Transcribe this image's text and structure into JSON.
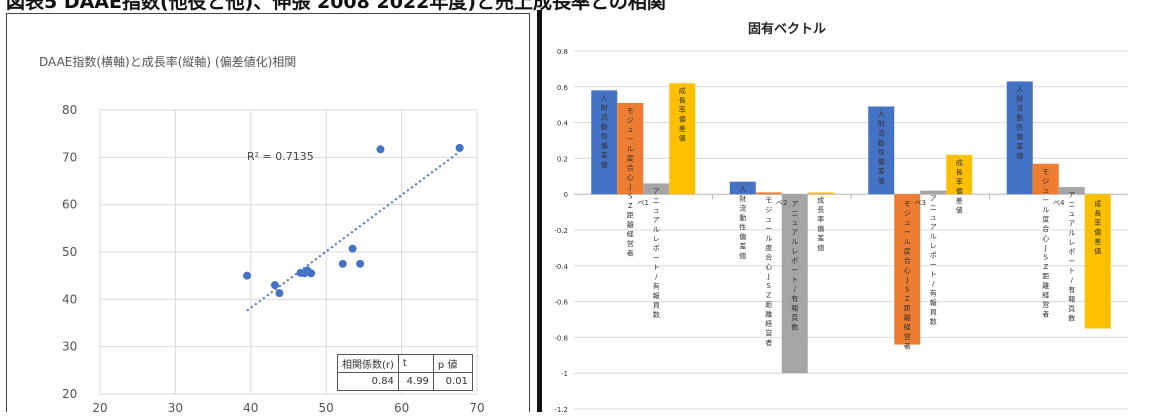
{
  "page": {
    "banner_text": "図表5 DAAE指数(他役と他)、伸張 2008 2022年度)と売上成長率との相関"
  },
  "chart_data": [
    {
      "type": "scatter",
      "title": "DAAE指数(横軸)と成長率(縦軸) (偏差値化)相関",
      "xlim": [
        20,
        70
      ],
      "ylim": [
        20,
        80
      ],
      "xticks": [
        20,
        30,
        40,
        50,
        60,
        70
      ],
      "yticks": [
        20,
        30,
        40,
        50,
        60,
        70,
        80
      ],
      "grid": true,
      "points": [
        {
          "x": 39.5,
          "y": 45.0
        },
        {
          "x": 43.2,
          "y": 43.0
        },
        {
          "x": 43.8,
          "y": 41.3
        },
        {
          "x": 46.6,
          "y": 45.6
        },
        {
          "x": 47.1,
          "y": 45.5
        },
        {
          "x": 47.5,
          "y": 46.1
        },
        {
          "x": 48.0,
          "y": 45.5
        },
        {
          "x": 52.2,
          "y": 47.5
        },
        {
          "x": 53.5,
          "y": 50.7
        },
        {
          "x": 54.5,
          "y": 47.5
        },
        {
          "x": 57.2,
          "y": 71.7
        },
        {
          "x": 67.7,
          "y": 72.0
        }
      ],
      "trendline": {
        "x": [
          39.5,
          67.7
        ],
        "y": [
          37.6,
          71.2
        ]
      },
      "r_squared_label": "R² = 0.7135",
      "stats_table": {
        "headers": [
          "相関係数(r)",
          "t",
          "p 値"
        ],
        "values": [
          "0.84",
          "4.99",
          "0.01"
        ]
      },
      "marker_color": "#4472C4"
    },
    {
      "type": "bar",
      "title": "固有ベクトル",
      "ylim": [
        -1.2,
        0.8
      ],
      "yticks": [
        -1.2,
        -1.0,
        -0.8,
        -0.6,
        -0.4,
        -0.2,
        0,
        0.2,
        0.4,
        0.6,
        0.8
      ],
      "ytick_labels": [
        "-1.2",
        "-1",
        "-0.8",
        "-0.6",
        "-0.4",
        "-0.2",
        "0",
        "0.2",
        "0.4",
        "0.6",
        "0.8"
      ],
      "grid": true,
      "categories": [
        "ベ1",
        "ベ2",
        "ベ3",
        "ベ4"
      ],
      "series": [
        {
          "color": "#4472C4",
          "values": [
            0.58,
            0.07,
            0.49,
            0.63
          ],
          "labels": [
            "人財流動性 偏差値",
            "人財流動性 偏差値",
            "人財流動性 偏差値",
            "人財流動性 偏差値"
          ]
        },
        {
          "color": "#ED7D31",
          "values": [
            0.51,
            0.01,
            -0.84,
            0.17
          ],
          "labels": [
            "モジュール度合 心JSZ距離 経営者",
            "モジュール度合 心JSZ距離 経営者",
            "モジュール度合 心JSZ距離 経営者",
            "モジュール度合 心JSZ距離 経営者"
          ]
        },
        {
          "color": "#A5A5A5",
          "values": [
            0.06,
            -1.0,
            0.02,
            0.04
          ],
          "labels": [
            "アニュアルレポート/有 報 頁数",
            "アニュアルレポート/有 報 頁数",
            "アニュアルレポート/有 報 頁数",
            "アニュアルレポート/有 報 頁数"
          ]
        },
        {
          "color": "#FFC000",
          "values": [
            0.62,
            0.01,
            0.22,
            -0.75
          ],
          "labels": [
            "成長率 偏差値",
            "成長率 偏差値",
            "成長率 偏差値",
            "成長率 偏差値"
          ]
        }
      ]
    }
  ]
}
